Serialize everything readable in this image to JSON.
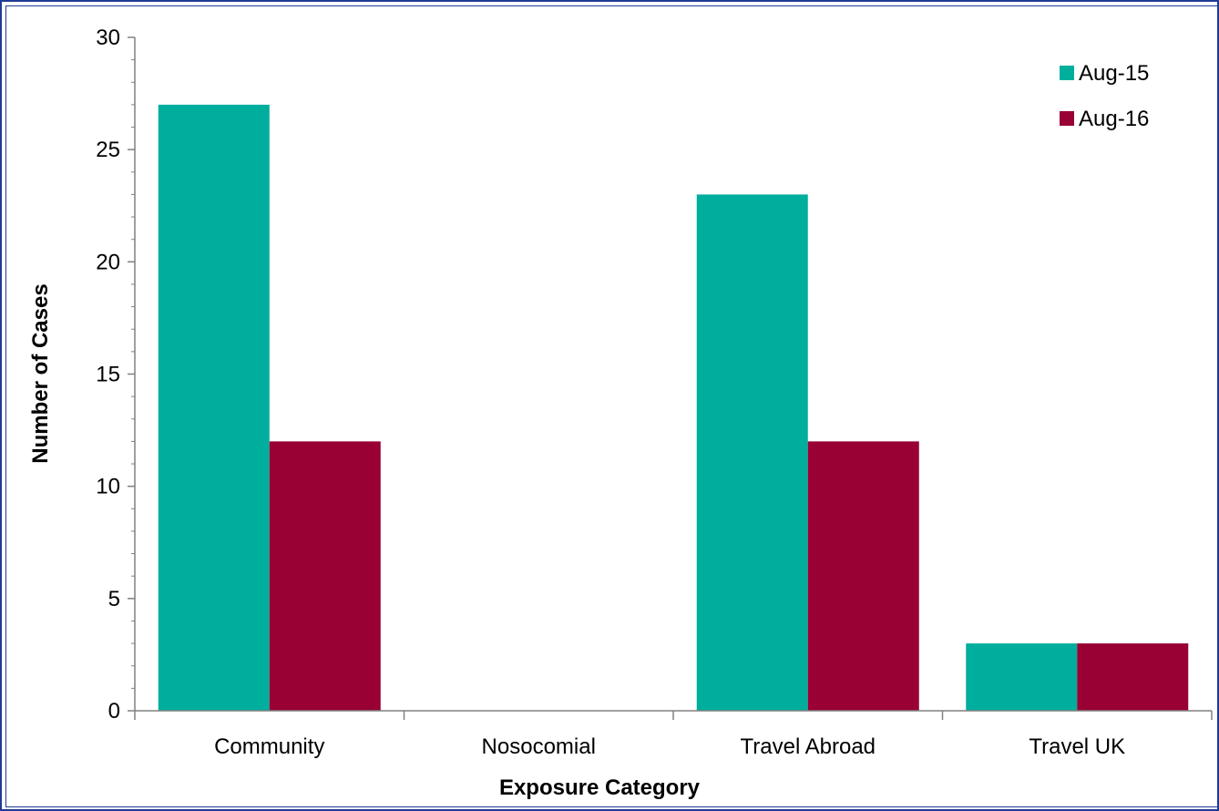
{
  "chart_data": {
    "type": "bar",
    "categories": [
      "Community",
      "Nosocomial",
      "Travel Abroad",
      "Travel UK"
    ],
    "series": [
      {
        "name": "Aug-15",
        "values": [
          27,
          0,
          23,
          3
        ],
        "color": "#00ae9e"
      },
      {
        "name": "Aug-16",
        "values": [
          12,
          0,
          12,
          3
        ],
        "color": "#990033"
      }
    ],
    "xlabel": "Exposure Category",
    "ylabel": "Number of Cases",
    "ylim": [
      0,
      30
    ],
    "yticks": [
      0,
      5,
      10,
      15,
      20,
      25,
      30
    ],
    "minor_tick_step": 1,
    "grid": false,
    "legend_position": "top-right"
  }
}
